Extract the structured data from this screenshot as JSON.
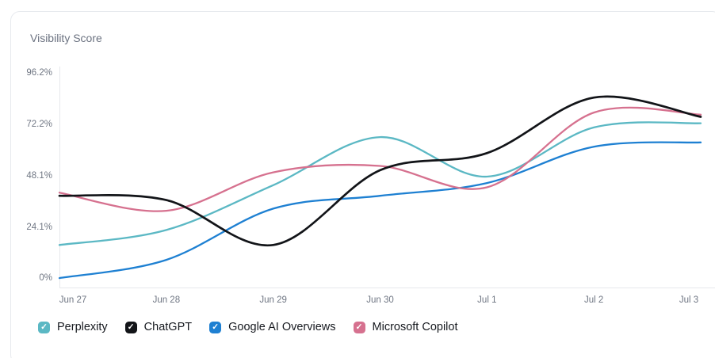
{
  "icons": {
    "check": "✓"
  },
  "chart_data": {
    "type": "line",
    "title": "Visibility Score",
    "xlabel": "",
    "ylabel": "Visibility Score (%)",
    "categories": [
      "Jun 27",
      "Jun 28",
      "Jun 29",
      "Jun 30",
      "Jul 1",
      "Jul 2",
      "Jul 3"
    ],
    "series": [
      {
        "name": "Perplexity",
        "color": "#5bb8c4",
        "values": [
          16,
          23,
          44,
          66.5,
          48,
          71,
          73
        ]
      },
      {
        "name": "ChatGPT",
        "color": "#121418",
        "values": [
          39,
          37,
          16,
          51,
          59,
          85,
          76
        ]
      },
      {
        "name": "Google AI Overviews",
        "color": "#1e80d2",
        "values": [
          0.5,
          9,
          33,
          39,
          45,
          62,
          64
        ]
      },
      {
        "name": "Microsoft Copilot",
        "color": "#d6718f",
        "values": [
          40.5,
          32,
          50,
          53,
          43,
          78,
          77
        ]
      }
    ],
    "yticks": [
      {
        "label": "0%",
        "value": 0
      },
      {
        "label": "24.1%",
        "value": 24.05
      },
      {
        "label": "48.1%",
        "value": 48.1
      },
      {
        "label": "72.2%",
        "value": 72.15
      },
      {
        "label": "96.2%",
        "value": 96.2
      }
    ],
    "ylim": [
      0,
      104
    ],
    "grid": false,
    "legend_position": "bottom",
    "legend_checked": true
  }
}
